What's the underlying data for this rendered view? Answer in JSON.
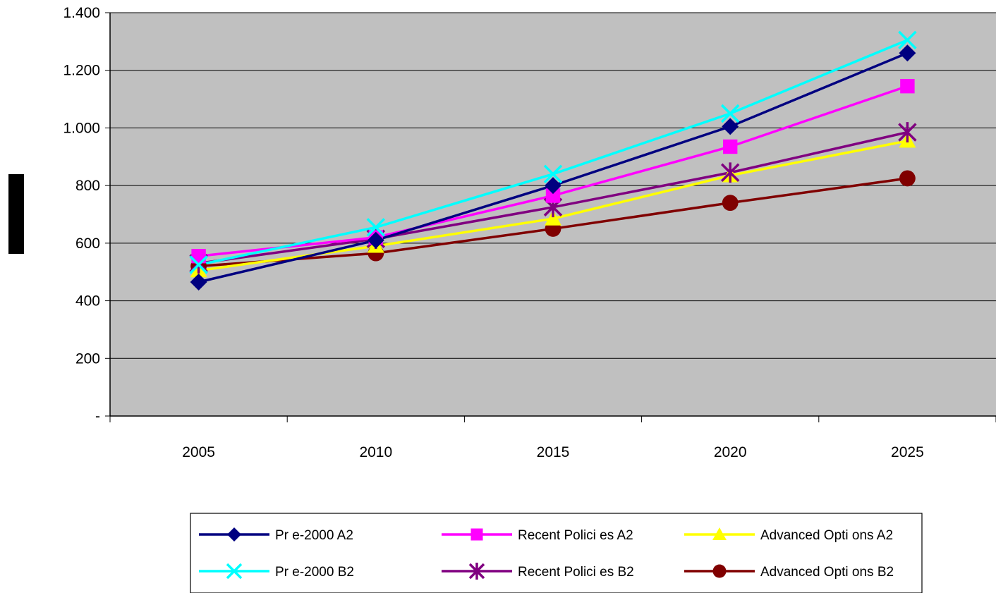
{
  "chart_data": {
    "type": "line",
    "categories": [
      "2005",
      "2010",
      "2015",
      "2020",
      "2025"
    ],
    "y_tick_labels": [
      "-",
      "200",
      "400",
      "600",
      "800",
      "1.000",
      "1.200",
      "1.400"
    ],
    "y_ticks": [
      0,
      200,
      400,
      600,
      800,
      1000,
      1200,
      1400
    ],
    "ylim": [
      0,
      1400
    ],
    "grid": true,
    "legend_position": "bottom",
    "series": [
      {
        "name": "Pr e-2000 A2",
        "color": "#000080",
        "marker": "diamond",
        "values": [
          465,
          610,
          800,
          1005,
          1260
        ]
      },
      {
        "name": "Recent Polici es A2",
        "color": "#ff00ff",
        "marker": "square",
        "values": [
          555,
          620,
          765,
          935,
          1145
        ]
      },
      {
        "name": "Advanced Opti ons A2",
        "color": "#ffff00",
        "marker": "triangle",
        "values": [
          505,
          590,
          685,
          835,
          955
        ]
      },
      {
        "name": "Pr e-2000 B2",
        "color": "#00ffff",
        "marker": "x",
        "values": [
          525,
          655,
          840,
          1050,
          1305
        ]
      },
      {
        "name": "Recent Polici es B2",
        "color": "#800080",
        "marker": "asterisk",
        "values": [
          530,
          615,
          725,
          845,
          985
        ]
      },
      {
        "name": "Advanced Opti ons B2",
        "color": "#800000",
        "marker": "circle",
        "values": [
          520,
          565,
          650,
          740,
          825
        ]
      }
    ],
    "plot_background": "#c0c0c0"
  }
}
